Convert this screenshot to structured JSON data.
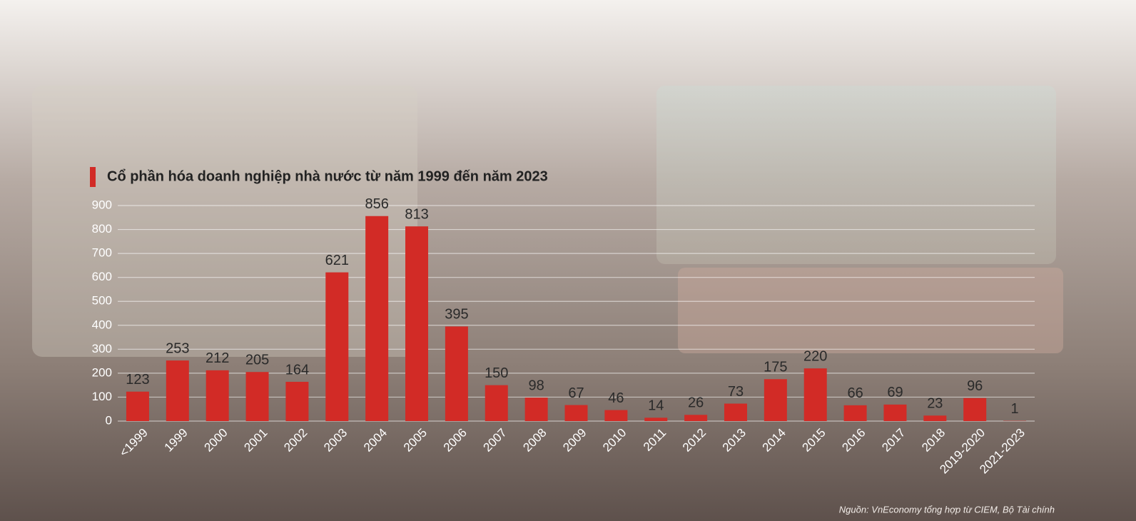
{
  "chart_data": {
    "type": "bar",
    "title": "Cổ phần hóa doanh nghiệp nhà nước từ năm 1999 đến năm 2023",
    "categories": [
      "<1999",
      "1999",
      "2000",
      "2001",
      "2002",
      "2003",
      "2004",
      "2005",
      "2006",
      "2007",
      "2008",
      "2009",
      "2010",
      "2011",
      "2012",
      "2013",
      "2014",
      "2015",
      "2016",
      "2017",
      "2018",
      "2019-2020",
      "2021-2023"
    ],
    "values": [
      123,
      253,
      212,
      205,
      164,
      621,
      856,
      813,
      395,
      150,
      98,
      67,
      46,
      14,
      26,
      73,
      175,
      220,
      66,
      69,
      23,
      96,
      1
    ],
    "color": "#d22b26",
    "ylim": [
      0,
      900
    ],
    "yticks": [
      0,
      100,
      200,
      300,
      400,
      500,
      600,
      700,
      800,
      900
    ],
    "grid": true,
    "source": "Nguồn: VnEconomy tổng hợp từ CIEM, Bộ Tài chính"
  }
}
